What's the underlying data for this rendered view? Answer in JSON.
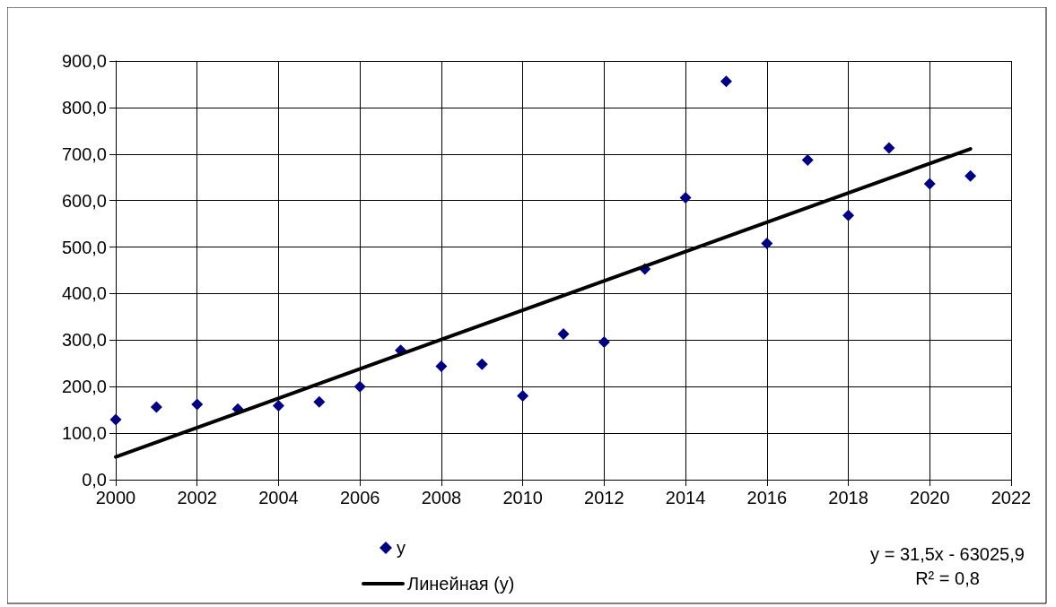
{
  "chart_data": {
    "type": "scatter",
    "x": [
      2000,
      2001,
      2002,
      2003,
      2004,
      2005,
      2006,
      2007,
      2008,
      2009,
      2010,
      2011,
      2012,
      2013,
      2014,
      2015,
      2016,
      2017,
      2018,
      2019,
      2020,
      2021
    ],
    "series": [
      {
        "name": "y",
        "color": "#000080",
        "marker": "diamond",
        "values": [
          129,
          156,
          162,
          152,
          159,
          167,
          200,
          278,
          244,
          248,
          180,
          313,
          296,
          453,
          606,
          856,
          508,
          687,
          568,
          713,
          636,
          653
        ]
      },
      {
        "name": "Линейная (y)",
        "type": "line",
        "color": "#000000",
        "marker": "none",
        "line_style": "solid",
        "x": [
          2000,
          2021
        ],
        "values": [
          49,
          711
        ]
      }
    ],
    "xlim": [
      2000,
      2022
    ],
    "xticks": [
      2000,
      2002,
      2004,
      2006,
      2008,
      2010,
      2012,
      2014,
      2016,
      2018,
      2020,
      2022
    ],
    "ylim": [
      0,
      900
    ],
    "yticks": [
      {
        "value": 0,
        "label": "0,0"
      },
      {
        "value": 100,
        "label": "100,0"
      },
      {
        "value": 200,
        "label": "200,0"
      },
      {
        "value": 300,
        "label": "300,0"
      },
      {
        "value": 400,
        "label": "400,0"
      },
      {
        "value": 500,
        "label": "500,0"
      },
      {
        "value": 600,
        "label": "600,0"
      },
      {
        "value": 700,
        "label": "700,0"
      },
      {
        "value": 800,
        "label": "800,0"
      },
      {
        "value": 900,
        "label": "900,0"
      }
    ],
    "grid": true,
    "legend": "bottom",
    "annotations": [
      "y = 31,5x - 63025,9",
      "R² = 0,8"
    ]
  }
}
